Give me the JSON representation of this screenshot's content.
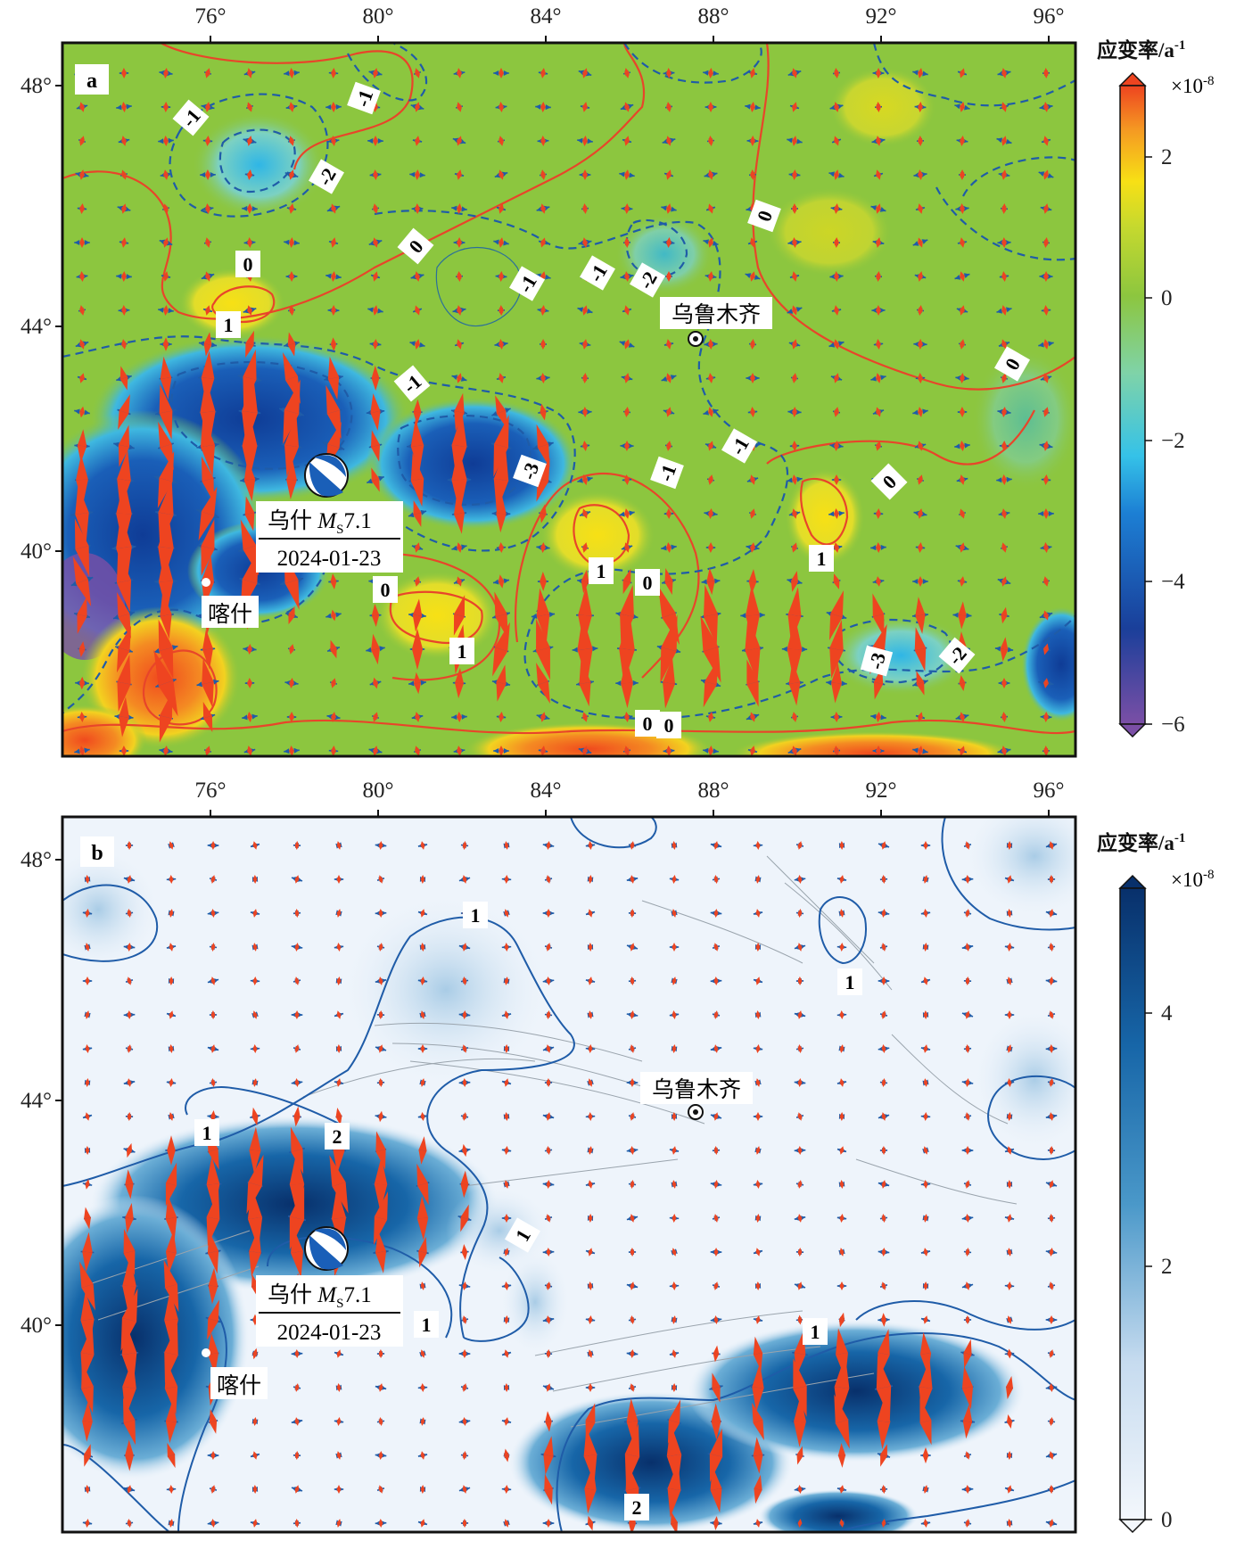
{
  "panels": [
    {
      "label": "a",
      "lon_ticks": [
        "76°",
        "80°",
        "84°",
        "88°",
        "92°",
        "96°"
      ],
      "lat_ticks": [
        "48°",
        "44°",
        "40°"
      ],
      "city": "乌鲁木齐",
      "epicenter": {
        "name": "乌什",
        "ms_prefix": "M",
        "ms_sub": "S",
        "ms_val": "7.1",
        "date": "2024-01-23"
      },
      "kashi": "喀什",
      "contour_labels": [
        "-1",
        "-1",
        "-2",
        "0",
        "0",
        "-1",
        "-1",
        "-2",
        "0",
        "1",
        "-1",
        "-3",
        "-1",
        "-1",
        "0",
        "0",
        "1",
        "0",
        "1",
        "0",
        "1",
        "0",
        "-3",
        "-2",
        "0"
      ],
      "colorbar": {
        "title": "应变率/a",
        "title_sup": "-1",
        "scale": "×10",
        "scale_sup": "-8",
        "ticks": [
          "2",
          "0",
          "−2",
          "−4",
          "−6"
        ]
      },
      "colors": {
        "positive": "#f24e1e",
        "zero": "#8cc63f",
        "negative": "#1a4fa0",
        "min": "#7b4fa6"
      }
    },
    {
      "label": "b",
      "lon_ticks": [
        "76°",
        "80°",
        "84°",
        "88°",
        "92°",
        "96°"
      ],
      "lat_ticks": [
        "48°",
        "44°",
        "40°"
      ],
      "city": "乌鲁木齐",
      "epicenter": {
        "name": "乌什",
        "ms_prefix": "M",
        "ms_sub": "S",
        "ms_val": "7.1",
        "date": "2024-01-23"
      },
      "kashi": "喀什",
      "contour_labels": [
        "1",
        "1",
        "1",
        "2",
        "1",
        "1",
        "1",
        "2"
      ],
      "colorbar": {
        "title": "应变率/a",
        "title_sup": "-1",
        "scale": "×10",
        "scale_sup": "-8",
        "ticks": [
          "4",
          "2",
          "0"
        ]
      },
      "colors": {
        "high": "#08306b",
        "low": "#f0f5fb"
      }
    }
  ]
}
